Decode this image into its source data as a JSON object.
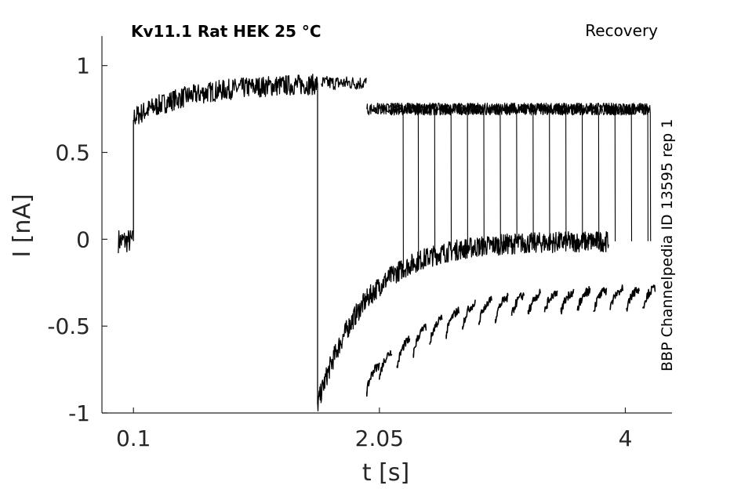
{
  "chart_data": {
    "type": "line",
    "title": "Kv11.1  Rat  HEK  25 °C",
    "subtitle": "Recovery",
    "side_label": "BBP Channelpedia ID 13595 rep 1",
    "xlabel": "t [s]",
    "ylabel": "I [nA]",
    "xlim": [
      -0.15,
      4.37
    ],
    "ylim": [
      -1.0,
      1.17
    ],
    "x_ticks": [
      0.1,
      2.05,
      4
    ],
    "x_tick_labels": [
      "0.1",
      "2.05",
      "4"
    ],
    "y_ticks": [
      -1,
      -0.5,
      0,
      0.5,
      1
    ],
    "y_tick_labels": [
      "-1",
      "-0.5",
      "0",
      "0.5",
      "1"
    ],
    "grid": false,
    "line_color": "#000000",
    "prepulse": {
      "baseline_start": -0.02,
      "step_time": 0.1,
      "step_end": 1.56,
      "baseline_level": -0.01,
      "start_level": 0.7,
      "plateau_level": 0.9
    },
    "recovery_block": {
      "start": 1.56,
      "end": 1.95,
      "level": 0.9
    },
    "tail_envelope": {
      "start": 1.56,
      "end": 3.87,
      "start_level": -0.95,
      "end_level": -0.01
    },
    "sweeps": [
      {
        "tail_onset": 1.95,
        "test_end": 1.85,
        "tail_peak": -0.88
      },
      {
        "tail_onset": 2.05,
        "test_end": 2.24,
        "tail_peak": -0.8
      },
      {
        "tail_onset": 2.19,
        "test_end": 2.36,
        "tail_peak": -0.74
      },
      {
        "tail_onset": 2.32,
        "test_end": 2.49,
        "tail_peak": -0.66
      },
      {
        "tail_onset": 2.45,
        "test_end": 2.62,
        "tail_peak": -0.6
      },
      {
        "tail_onset": 2.58,
        "test_end": 2.75,
        "tail_peak": -0.55
      },
      {
        "tail_onset": 2.71,
        "test_end": 2.88,
        "tail_peak": -0.5
      },
      {
        "tail_onset": 2.84,
        "test_end": 3.01,
        "tail_peak": -0.48
      },
      {
        "tail_onset": 2.97,
        "test_end": 3.14,
        "tail_peak": -0.46
      },
      {
        "tail_onset": 3.1,
        "test_end": 3.27,
        "tail_peak": -0.44
      },
      {
        "tail_onset": 3.23,
        "test_end": 3.4,
        "tail_peak": -0.43
      },
      {
        "tail_onset": 3.36,
        "test_end": 3.53,
        "tail_peak": -0.42
      },
      {
        "tail_onset": 3.49,
        "test_end": 3.66,
        "tail_peak": -0.42
      },
      {
        "tail_onset": 3.62,
        "test_end": 3.79,
        "tail_peak": -0.41
      },
      {
        "tail_onset": 3.75,
        "test_end": 3.92,
        "tail_peak": -0.41
      },
      {
        "tail_onset": 3.88,
        "test_end": 4.05,
        "tail_peak": -0.4
      },
      {
        "tail_onset": 4.01,
        "test_end": 4.18,
        "tail_peak": -0.4
      },
      {
        "tail_onset": 4.14,
        "test_end": 4.2,
        "tail_peak": -0.39
      }
    ],
    "test_level": 0.75
  }
}
